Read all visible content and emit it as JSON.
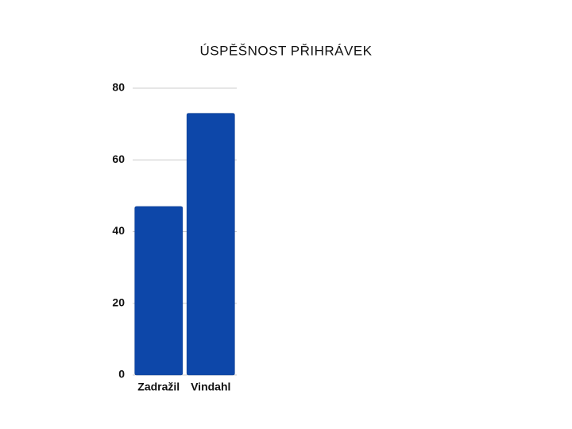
{
  "chart_data": {
    "type": "bar",
    "title": "ÚSPĚŠNOST PŘIHRÁVEK",
    "categories": [
      "Zadražil",
      "Vindahl"
    ],
    "values": [
      47,
      73
    ],
    "color": "#0d47a9",
    "ylim": [
      0,
      80
    ],
    "yticks": [
      0,
      20,
      40,
      60,
      80
    ],
    "grid": true
  }
}
